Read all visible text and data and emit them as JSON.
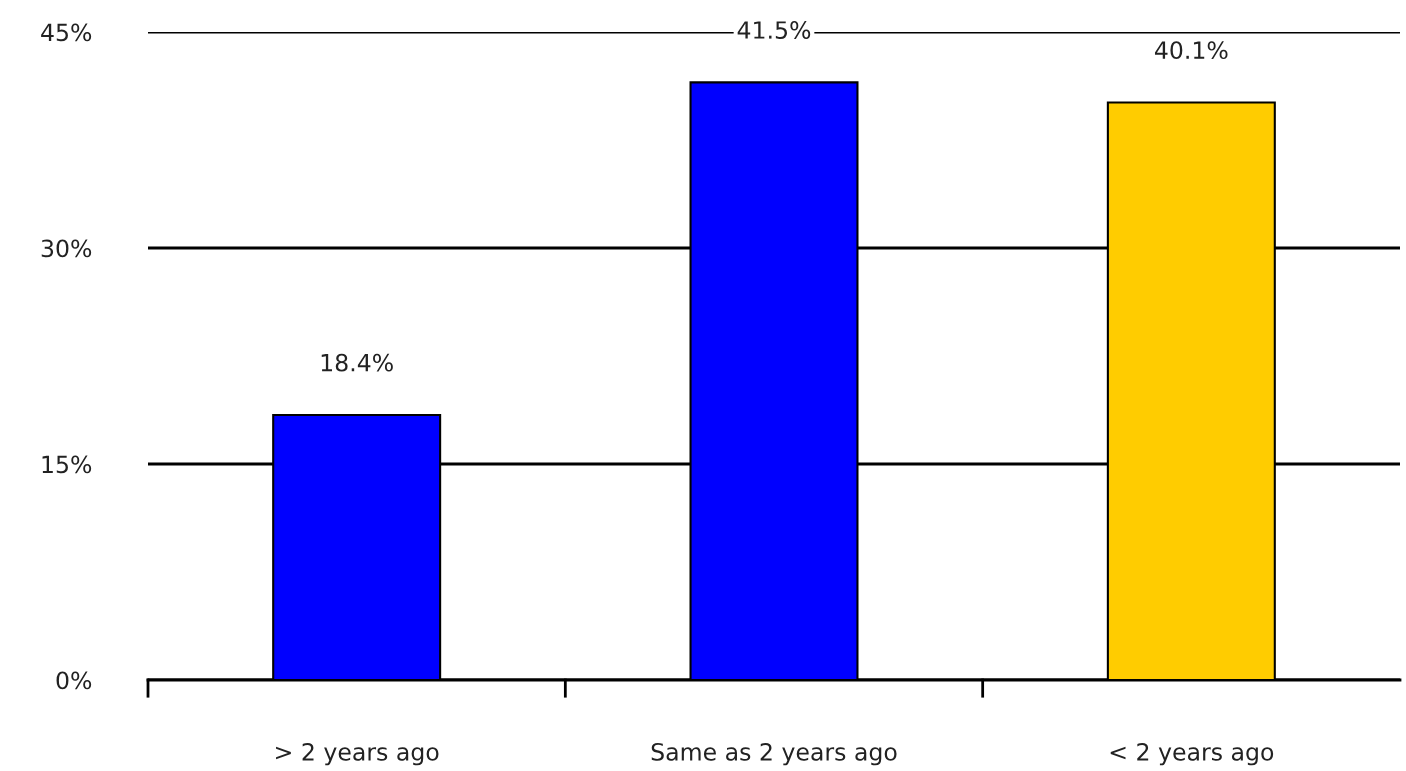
{
  "chart_data": {
    "type": "bar",
    "categories": [
      "> 2 years ago",
      "Same as 2 years ago",
      "< 2 years ago"
    ],
    "values": [
      18.4,
      41.5,
      40.1
    ],
    "colors": [
      "#0000ff",
      "#0000ff",
      "#ffcc00"
    ],
    "value_labels": [
      "18.4%",
      "41.5%",
      "40.1%"
    ],
    "ylim": [
      0,
      45
    ],
    "yticks": [
      {
        "value": 0,
        "label": "0%"
      },
      {
        "value": 15,
        "label": "15%"
      },
      {
        "value": 30,
        "label": "30%"
      },
      {
        "value": 45,
        "label": "45%"
      }
    ],
    "grid": "y",
    "legend": false
  }
}
